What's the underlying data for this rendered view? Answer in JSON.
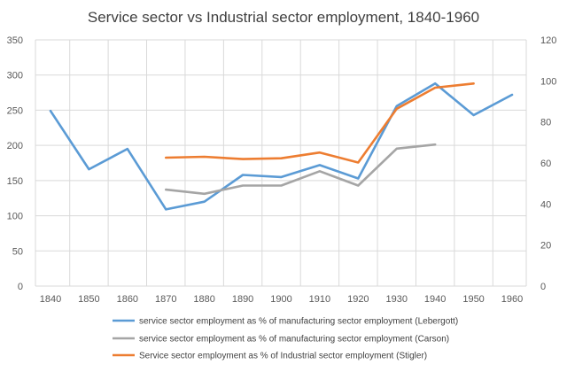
{
  "chart_data": {
    "type": "line",
    "title": "Service sector vs Industrial sector employment, 1840-1960",
    "x": [
      1840,
      1850,
      1860,
      1870,
      1880,
      1890,
      1900,
      1910,
      1920,
      1930,
      1940,
      1950,
      1960
    ],
    "x_ticks": [
      "1840",
      "1850",
      "1860",
      "1870",
      "1880",
      "1890",
      "1900",
      "1910",
      "1920",
      "1930",
      "1940",
      "1950",
      "1960"
    ],
    "y_left": {
      "lim": [
        0,
        350
      ],
      "ticks": [
        "0",
        "50",
        "100",
        "150",
        "200",
        "250",
        "300",
        "350"
      ]
    },
    "y_right": {
      "lim": [
        0,
        120
      ],
      "ticks": [
        "0",
        "20",
        "40",
        "60",
        "80",
        "100",
        "120"
      ]
    },
    "grid": true,
    "legend_position": "bottom",
    "series": [
      {
        "name": "service sector employment as % of manufacturing sector employment (Lebergott)",
        "axis": "left",
        "color": "#5b9bd5",
        "values": [
          249,
          166,
          195,
          109,
          120,
          158,
          155,
          172,
          153,
          256,
          288,
          243,
          272
        ]
      },
      {
        "name": "service sector employment as % of manufacturing sector employment (Carson)",
        "axis": "right",
        "color": "#a5a5a5",
        "values": [
          null,
          null,
          null,
          47,
          45,
          49,
          49,
          56,
          49,
          67,
          69,
          null,
          null
        ]
      },
      {
        "name": "Service sector employment as % of Industrial sector employment (Stigler)",
        "axis": "right",
        "color": "#ed7d31",
        "values": [
          null,
          null,
          null,
          62.6,
          63.0,
          61.9,
          62.3,
          65.1,
          60.2,
          86.4,
          96.7,
          98.7,
          null
        ]
      }
    ]
  }
}
